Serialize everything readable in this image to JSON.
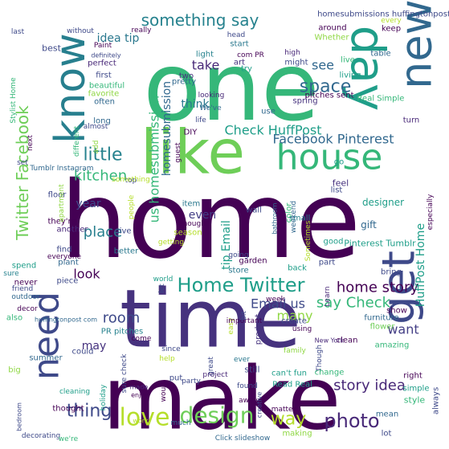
{
  "words": [
    {
      "text": "home",
      "color": "#440154"
    },
    {
      "text": "one",
      "color": "#35b779"
    },
    {
      "text": "make",
      "color": "#440154"
    },
    {
      "text": "time",
      "color": "#46327e"
    },
    {
      "text": "like",
      "color": "#6ece58"
    },
    {
      "text": "day",
      "color": "#1f9e89"
    },
    {
      "text": "new",
      "color": "#31688e"
    },
    {
      "text": "know",
      "color": "#277f8e"
    },
    {
      "text": "house",
      "color": "#35b779"
    },
    {
      "text": "get",
      "color": "#3e4989"
    },
    {
      "text": "need",
      "color": "#3e4989"
    },
    {
      "text": "love",
      "color": "#b5de2b"
    },
    {
      "text": "design",
      "color": "#6ece58"
    },
    {
      "text": "photo",
      "color": "#482878"
    },
    {
      "text": "Home Twitter",
      "color": "#1f9e89"
    },
    {
      "text": "little",
      "color": "#26828e"
    },
    {
      "text": "space",
      "color": "#31688e"
    },
    {
      "text": "thing",
      "color": "#3e4989"
    },
    {
      "text": "way",
      "color": "#b5de2b"
    },
    {
      "text": "something say",
      "color": "#26828e"
    },
    {
      "text": "Twitter Facebook",
      "color": "#6ece58"
    },
    {
      "text": "Facebook Pinterest",
      "color": "#31688e"
    },
    {
      "text": "Check HuffPost",
      "color": "#1f9e89"
    },
    {
      "text": "home story",
      "color": "#440154"
    },
    {
      "text": "story idea",
      "color": "#482878"
    },
    {
      "text": "say Check",
      "color": "#35b779"
    },
    {
      "text": "Email us",
      "color": "#3e4989"
    },
    {
      "text": "HuffPost Home",
      "color": "#1f9e89"
    },
    {
      "text": "room",
      "color": "#3e4989"
    },
    {
      "text": "place",
      "color": "#277f8e"
    },
    {
      "text": "kitchen",
      "color": "#35b779"
    },
    {
      "text": "want",
      "color": "#433e85"
    },
    {
      "text": "idea tip",
      "color": "#2a788e"
    },
    {
      "text": "homesubmission",
      "color": "#31688e"
    },
    {
      "text": "us homesubmission",
      "color": "#35b779"
    },
    {
      "text": "tip Email",
      "color": "#1f9e89"
    },
    {
      "text": "take",
      "color": "#482878"
    },
    {
      "text": "think",
      "color": "#2a788e"
    },
    {
      "text": "look",
      "color": "#440154"
    },
    {
      "text": "year",
      "color": "#3e4989"
    },
    {
      "text": "even",
      "color": "#433e85"
    },
    {
      "text": "many",
      "color": "#8fd744"
    },
    {
      "text": "may",
      "color": "#46327e"
    },
    {
      "text": "see",
      "color": "#31688e"
    },
    {
      "text": "Pinterest Tumblr",
      "color": "#1f9e89"
    },
    {
      "text": "homesubmissions huffingtonpost",
      "color": "#3e4989"
    },
    {
      "text": "two",
      "color": "#46327e"
    },
    {
      "text": "light",
      "color": "#26828e"
    },
    {
      "text": "perfect",
      "color": "#482878"
    },
    {
      "text": "first",
      "color": "#3e4989"
    },
    {
      "text": "pretty",
      "color": "#31688e"
    },
    {
      "text": "beautiful",
      "color": "#35b779"
    },
    {
      "text": "favorite",
      "color": "#8fd744"
    },
    {
      "text": "often",
      "color": "#31688e"
    },
    {
      "text": "definitely",
      "color": "#3e4989"
    },
    {
      "text": "really",
      "color": "#440154"
    },
    {
      "text": "Paint",
      "color": "#440154"
    },
    {
      "text": "without",
      "color": "#3e4989"
    },
    {
      "text": "best",
      "color": "#3e4989"
    },
    {
      "text": "com PR",
      "color": "#440154"
    },
    {
      "text": "art",
      "color": "#46327e"
    },
    {
      "text": "head",
      "color": "#3e4989"
    },
    {
      "text": "start",
      "color": "#2a788e"
    },
    {
      "text": "try",
      "color": "#1f9e89"
    },
    {
      "text": "use",
      "color": "#31688e"
    },
    {
      "text": "high",
      "color": "#482878"
    },
    {
      "text": "might",
      "color": "#3e4989"
    },
    {
      "text": "live",
      "color": "#35b779"
    },
    {
      "text": "living",
      "color": "#1f9e89"
    },
    {
      "text": "table",
      "color": "#31688e"
    },
    {
      "text": "around",
      "color": "#440154"
    },
    {
      "text": "Whether",
      "color": "#8fd744"
    },
    {
      "text": "every",
      "color": "#b5de2b"
    },
    {
      "text": "keep",
      "color": "#440154"
    },
    {
      "text": "pitches sent",
      "color": "#440154"
    },
    {
      "text": "Real Simple",
      "color": "#35b779"
    },
    {
      "text": "spring",
      "color": "#46327e"
    },
    {
      "text": "turn",
      "color": "#482878"
    },
    {
      "text": "go",
      "color": "#1f9e89"
    },
    {
      "text": "feel",
      "color": "#46327e"
    },
    {
      "text": "list",
      "color": "#3e4989"
    },
    {
      "text": "designer",
      "color": "#1f9e89"
    },
    {
      "text": "especially",
      "color": "#440154"
    },
    {
      "text": "small",
      "color": "#26828e"
    },
    {
      "text": "color",
      "color": "#35b779"
    },
    {
      "text": "gift",
      "color": "#31688e"
    },
    {
      "text": "part",
      "color": "#3e4989"
    },
    {
      "text": "good",
      "color": "#1f9e89"
    },
    {
      "text": "Sometimes",
      "color": "#b5de2b"
    },
    {
      "text": "weekend",
      "color": "#31688e"
    },
    {
      "text": "bathroom",
      "color": "#31688e"
    },
    {
      "text": "back",
      "color": "#1f9e89"
    },
    {
      "text": "bring",
      "color": "#3e4989"
    },
    {
      "text": "Learn",
      "color": "#482878"
    },
    {
      "text": "show",
      "color": "#440154"
    },
    {
      "text": "flower",
      "color": "#6ece58"
    },
    {
      "text": "furniture",
      "color": "#31688e"
    },
    {
      "text": "amazing",
      "color": "#35b779"
    },
    {
      "text": "clean",
      "color": "#440154"
    },
    {
      "text": "New York",
      "color": "#482878"
    },
    {
      "text": "Though",
      "color": "#3e4989"
    },
    {
      "text": "right",
      "color": "#440154"
    },
    {
      "text": "simple",
      "color": "#1f9e89"
    },
    {
      "text": "style",
      "color": "#35b779"
    },
    {
      "text": "always",
      "color": "#3e4989"
    },
    {
      "text": "mean",
      "color": "#31688e"
    },
    {
      "text": "lot",
      "color": "#3e4989"
    },
    {
      "text": "change",
      "color": "#35b779"
    },
    {
      "text": "Read Real",
      "color": "#1f9e89"
    },
    {
      "text": "can't fun",
      "color": "#1f9e89"
    },
    {
      "text": "matter",
      "color": "#440154"
    },
    {
      "text": "creative",
      "color": "#3e4989"
    },
    {
      "text": "making",
      "color": "#8fd744"
    },
    {
      "text": "Click slideshow",
      "color": "#31688e"
    },
    {
      "text": "found",
      "color": "#3e4989"
    },
    {
      "text": "away",
      "color": "#440154"
    },
    {
      "text": "still",
      "color": "#3e4989"
    },
    {
      "text": "great",
      "color": "#3e4989"
    },
    {
      "text": "ever",
      "color": "#2a788e"
    },
    {
      "text": "project",
      "color": "#482878"
    },
    {
      "text": "party",
      "color": "#3e4989"
    },
    {
      "text": "put",
      "color": "#3e4989"
    },
    {
      "text": "would",
      "color": "#440154"
    },
    {
      "text": "much",
      "color": "#31688e"
    },
    {
      "text": "help",
      "color": "#b5de2b"
    },
    {
      "text": "since",
      "color": "#3e4989"
    },
    {
      "text": "come",
      "color": "#440154"
    },
    {
      "text": "PR pitches",
      "color": "#26828e"
    },
    {
      "text": "sure check",
      "color": "#3e4989"
    },
    {
      "text": "holiday",
      "color": "#1f9e89"
    },
    {
      "text": "made",
      "color": "#482878"
    },
    {
      "text": "enjoy",
      "color": "#440154"
    },
    {
      "text": "work",
      "color": "#b5de2b"
    },
    {
      "text": "summer",
      "color": "#31688e"
    },
    {
      "text": "could",
      "color": "#3e4989"
    },
    {
      "text": "cleaning",
      "color": "#1f9e89"
    },
    {
      "text": "thought",
      "color": "#440154"
    },
    {
      "text": "decorating",
      "color": "#3e4989"
    },
    {
      "text": "we're",
      "color": "#35b779"
    },
    {
      "text": "bedroom",
      "color": "#3e4989"
    },
    {
      "text": "big",
      "color": "#8fd744"
    },
    {
      "text": "also",
      "color": "#35b779"
    },
    {
      "text": "decor",
      "color": "#440154"
    },
    {
      "text": "outdoor",
      "color": "#31688e"
    },
    {
      "text": "friend",
      "color": "#3e4989"
    },
    {
      "text": "never",
      "color": "#440154"
    },
    {
      "text": "piece",
      "color": "#3e4989"
    },
    {
      "text": "huffingtonpost com",
      "color": "#31688e"
    },
    {
      "text": "sure",
      "color": "#26828e"
    },
    {
      "text": "spend",
      "color": "#1f9e89"
    },
    {
      "text": "plant",
      "color": "#31688e"
    },
    {
      "text": "everyone",
      "color": "#440154"
    },
    {
      "text": "find",
      "color": "#3e4989"
    },
    {
      "text": "another",
      "color": "#482878"
    },
    {
      "text": "they're",
      "color": "#440154"
    },
    {
      "text": "floor",
      "color": "#3e4989"
    },
    {
      "text": "apartment",
      "color": "#8fd744"
    },
    {
      "text": "people",
      "color": "#b5de2b"
    },
    {
      "text": "Tumblr Instagram",
      "color": "#31688e"
    },
    {
      "text": "set",
      "color": "#3e4989"
    },
    {
      "text": "next",
      "color": "#440154"
    },
    {
      "text": "long",
      "color": "#31688e"
    },
    {
      "text": "almost",
      "color": "#3e4989"
    },
    {
      "text": "different",
      "color": "#35b779"
    },
    {
      "text": "add",
      "color": "#8fd744"
    },
    {
      "text": "top",
      "color": "#3e4989"
    },
    {
      "text": "guest",
      "color": "#440154"
    },
    {
      "text": "life",
      "color": "#3e4989"
    },
    {
      "text": "DIY",
      "color": "#440154"
    },
    {
      "text": "We've",
      "color": "#31688e"
    },
    {
      "text": "looking",
      "color": "#482878"
    },
    {
      "text": "item",
      "color": "#2a788e"
    },
    {
      "text": "enough",
      "color": "#440154"
    },
    {
      "text": "season",
      "color": "#b5de2b"
    },
    {
      "text": "getting",
      "color": "#b5de2b"
    },
    {
      "text": "wall",
      "color": "#3e4989"
    },
    {
      "text": "going",
      "color": "#3e4989"
    },
    {
      "text": "better",
      "color": "#2a788e"
    },
    {
      "text": "give",
      "color": "#3e4989"
    },
    {
      "text": "store",
      "color": "#2a788e"
    },
    {
      "text": "garden",
      "color": "#440154"
    },
    {
      "text": "product",
      "color": "#46327e"
    },
    {
      "text": "easy",
      "color": "#b5de2b"
    },
    {
      "text": "world",
      "color": "#1f9e89"
    },
    {
      "text": "let",
      "color": "#3e4989"
    },
    {
      "text": "create",
      "color": "#3e4989"
    },
    {
      "text": "using",
      "color": "#440154"
    },
    {
      "text": "important",
      "color": "#440154"
    },
    {
      "text": "bit",
      "color": "#3e4989"
    },
    {
      "text": "last",
      "color": "#3e4989"
    },
    {
      "text": "Stylist Home",
      "color": "#35b779"
    },
    {
      "text": "something",
      "color": "#b5de2b"
    },
    {
      "text": "week",
      "color": "#440154"
    },
    {
      "text": "family",
      "color": "#8fd744"
    }
  ]
}
